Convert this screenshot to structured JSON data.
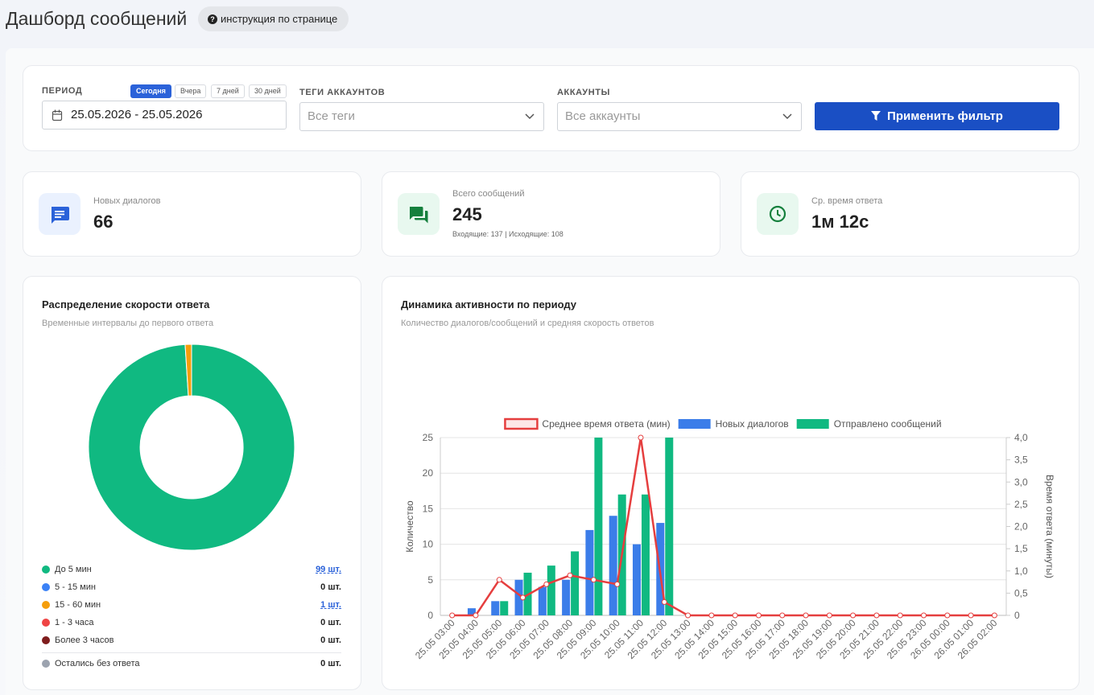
{
  "header": {
    "title": "Дашборд сообщений",
    "help_button": "инструкция по странице"
  },
  "filters": {
    "period_label": "ПЕРИОД",
    "quick_ranges": [
      "Сегодня",
      "Вчера",
      "7 дней",
      "30 дней"
    ],
    "date_range": "25.05.2026 - 25.05.2026",
    "tags_label": "ТЕГИ АККАУНТОВ",
    "tags_placeholder": "Все теги",
    "accounts_label": "АККАУНТЫ",
    "accounts_placeholder": "Все аккаунты",
    "apply_button": "Применить фильтр"
  },
  "stats": [
    {
      "label": "Новых диалогов",
      "value": 66
    },
    {
      "label": "Всего сообщений",
      "value": 245,
      "detail": "Входящие: 137 | Исходящие: 108"
    },
    {
      "label": "Ср. время ответа",
      "value": "1м 12с"
    }
  ],
  "chart_data": [
    {
      "type": "donut",
      "title": "Распределение скорости ответа",
      "subtitle": "Временные интервалы до первого ответа",
      "categories": [
        "До 5 мин",
        "5 - 15 мин",
        "15 - 60 мин",
        "1 - 3 часа",
        "Более 3 часов",
        "Остались без ответа"
      ],
      "values": [
        99,
        0,
        1,
        0,
        0,
        0
      ],
      "value_labels": [
        "99 шт.",
        "0 шт.",
        "1 шт.",
        "0 шт.",
        "0 шт.",
        "0 шт."
      ],
      "colors": [
        "#10b981",
        "#3b82f6",
        "#f59e0b",
        "#ef4444",
        "#7f1d1d",
        "#9ca3af"
      ]
    },
    {
      "type": "bar",
      "title": "Динамика активности по периоду",
      "subtitle": "Количество диалогов/сообщений и средняя скорость ответов",
      "categories": [
        "25.05 03:00",
        "25.05 04:00",
        "25.05 05:00",
        "25.05 06:00",
        "25.05 07:00",
        "25.05 08:00",
        "25.05 09:00",
        "25.05 10:00",
        "25.05 11:00",
        "25.05 12:00",
        "25.05 13:00",
        "25.05 14:00",
        "25.05 15:00",
        "25.05 16:00",
        "25.05 17:00",
        "25.05 18:00",
        "25.05 19:00",
        "25.05 20:00",
        "25.05 21:00",
        "25.05 22:00",
        "25.05 23:00",
        "26.05 00:00",
        "26.05 01:00",
        "26.05 02:00"
      ],
      "series": [
        {
          "name": "Среднее время ответа (мин)",
          "type": "line",
          "axis": "y2",
          "color": "#e53e3e",
          "values": [
            0,
            0,
            0.8,
            0.4,
            0.7,
            0.9,
            0.8,
            0.7,
            4.0,
            0.3,
            0,
            0,
            0,
            0,
            0,
            0,
            0,
            0,
            0,
            0,
            0,
            0,
            0,
            0
          ]
        },
        {
          "name": "Новых диалогов",
          "color": "#3b7de9",
          "values": [
            0,
            1,
            2,
            5,
            4,
            5,
            12,
            14,
            10,
            13,
            0,
            0,
            0,
            0,
            0,
            0,
            0,
            0,
            0,
            0,
            0,
            0,
            0,
            0
          ]
        },
        {
          "name": "Отправлено сообщений",
          "color": "#10b981",
          "values": [
            0,
            0,
            2,
            6,
            7,
            9,
            25,
            17,
            17,
            25,
            0,
            0,
            0,
            0,
            0,
            0,
            0,
            0,
            0,
            0,
            0,
            0,
            0,
            0
          ]
        }
      ],
      "ylabel": "Количество",
      "y2label": "Время ответа (минуты)",
      "ylim": [
        0,
        25
      ],
      "yticks": [
        0,
        5,
        10,
        15,
        20,
        25
      ],
      "y2lim": [
        0,
        4
      ],
      "y2ticks": [
        0,
        {
          "value": 0.5,
          "label": "0,5"
        },
        {
          "value": 1,
          "label": "1,0"
        },
        {
          "value": 1.5,
          "label": "1,5"
        },
        {
          "value": 2,
          "label": "2,0"
        },
        {
          "value": 2.5,
          "label": "2,5"
        },
        {
          "value": 3,
          "label": "3,0"
        },
        {
          "value": 3.5,
          "label": "3,5"
        },
        {
          "value": 4,
          "label": "4,0"
        }
      ],
      "grid": true
    }
  ]
}
